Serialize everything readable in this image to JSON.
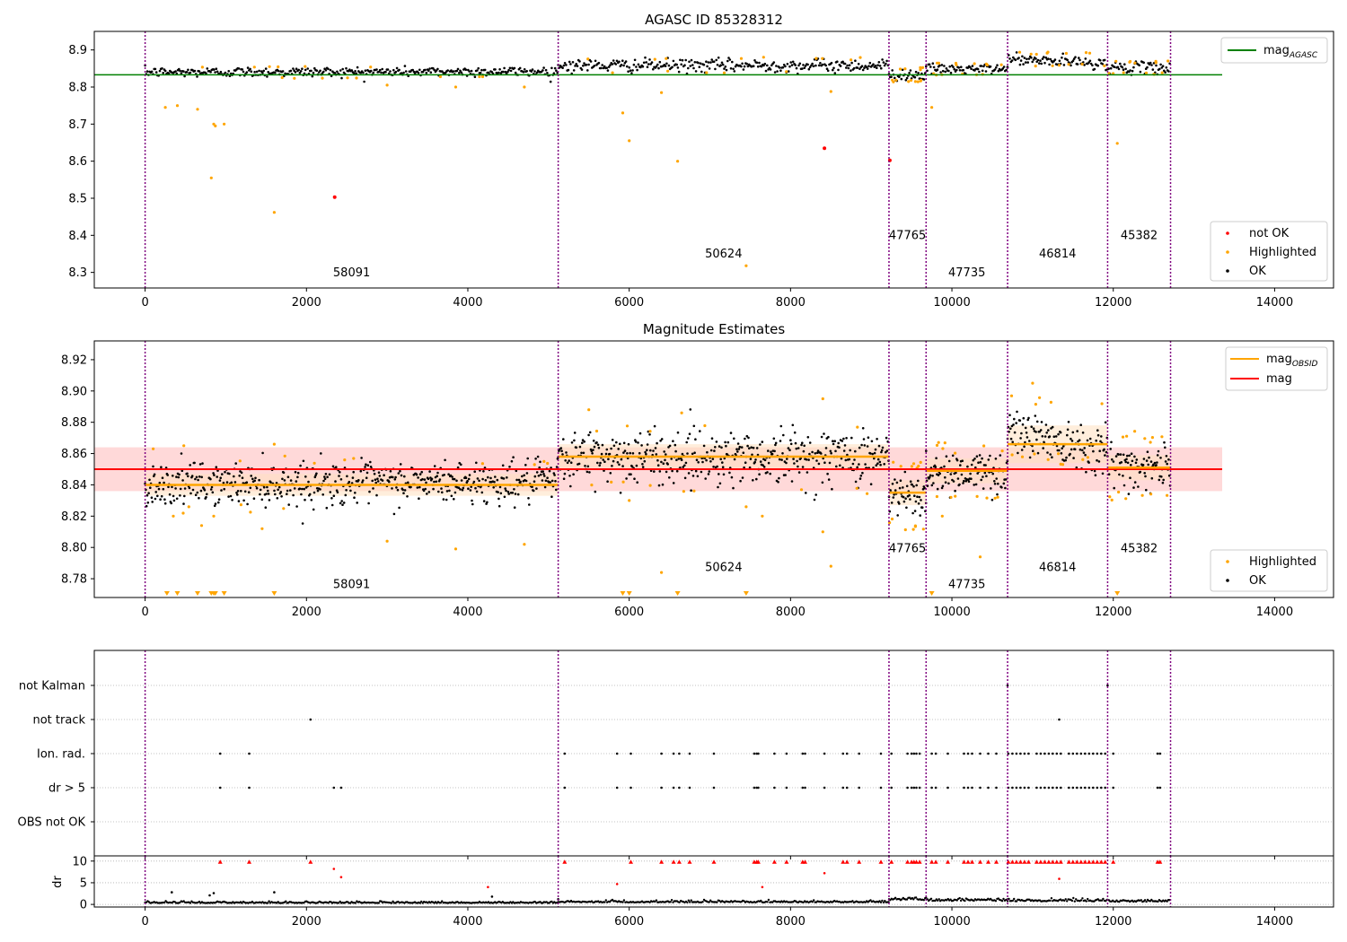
{
  "colors": {
    "ok": "#000000",
    "highlighted": "#ffa500",
    "not_ok": "#ff0000",
    "mag_agasc": "#008000",
    "mag": "#ff0000",
    "mag_obsid": "#ffa500",
    "obsid_line": "#800080",
    "band_red": "#ffc0c0",
    "band_orange": "#ffe0c0"
  },
  "chart_data": [
    {
      "type": "scatter",
      "title": "AGASC ID 85328312",
      "xlim": [
        -630,
        14730
      ],
      "ylim": [
        8.258,
        8.95
      ],
      "xticks": [
        0,
        2000,
        4000,
        6000,
        8000,
        10000,
        12000,
        14000
      ],
      "yticks": [
        8.3,
        8.4,
        8.5,
        8.6,
        8.7,
        8.8,
        8.9
      ],
      "obsid_boundaries": [
        0,
        5120,
        9220,
        9680,
        10690,
        11930,
        12710
      ],
      "obsid_labels": [
        {
          "label": "58091",
          "x": 2560,
          "y": 8.29
        },
        {
          "label": "50624",
          "x": 7170,
          "y": 8.34
        },
        {
          "label": "47765",
          "x": 9450,
          "y": 8.39
        },
        {
          "label": "47735",
          "x": 10185,
          "y": 8.29
        },
        {
          "label": "46814",
          "x": 11310,
          "y": 8.34
        },
        {
          "label": "45382",
          "x": 12320,
          "y": 8.39
        }
      ],
      "ok_segments": [
        {
          "x": [
            0,
            5120
          ],
          "center": 8.84,
          "half_width": 0.012,
          "slope": 0.002
        },
        {
          "x": [
            5120,
            9220
          ],
          "center": 8.858,
          "half_width": 0.016,
          "slope": 0.0
        },
        {
          "x": [
            9220,
            9680
          ],
          "center": 8.833,
          "half_width": 0.014,
          "slope": 0.0
        },
        {
          "x": [
            9680,
            10690
          ],
          "center": 8.848,
          "half_width": 0.012,
          "slope": 0.0
        },
        {
          "x": [
            10690,
            11930
          ],
          "center": 8.875,
          "half_width": 0.014,
          "slope": -0.012
        },
        {
          "x": [
            11930,
            12710
          ],
          "center": 8.852,
          "half_width": 0.014,
          "slope": 0.0
        }
      ],
      "highlighted_outliers": [
        [
          250,
          8.745
        ],
        [
          400,
          8.75
        ],
        [
          650,
          8.74
        ],
        [
          820,
          8.555
        ],
        [
          850,
          8.7
        ],
        [
          870,
          8.695
        ],
        [
          980,
          8.7
        ],
        [
          1600,
          8.462
        ],
        [
          3000,
          8.805
        ],
        [
          3850,
          8.8
        ],
        [
          4700,
          8.8
        ],
        [
          5920,
          8.73
        ],
        [
          6000,
          8.655
        ],
        [
          6400,
          8.785
        ],
        [
          6600,
          8.6
        ],
        [
          7450,
          8.318
        ],
        [
          8500,
          8.788
        ],
        [
          9750,
          8.745
        ],
        [
          12050,
          8.648
        ]
      ],
      "not_ok_points": [
        [
          2350,
          8.503
        ],
        [
          8420,
          8.635
        ],
        [
          9230,
          8.602
        ]
      ],
      "hlines": [
        {
          "name": "mag_AGASC",
          "y": 8.833,
          "x": [
            -630,
            13350
          ],
          "color": "#008000"
        }
      ],
      "legends": [
        {
          "position": "upper-right",
          "entries": [
            {
              "label": "mag",
              "sub": "AGASC"
            }
          ]
        },
        {
          "position": "lower-right",
          "entries": [
            {
              "label": "not OK"
            },
            {
              "label": "Highlighted"
            },
            {
              "label": "OK"
            }
          ]
        }
      ]
    },
    {
      "type": "scatter",
      "title": "Magnitude Estimates",
      "xlim": [
        -630,
        14730
      ],
      "ylim": [
        8.768,
        8.932
      ],
      "xticks": [
        0,
        2000,
        4000,
        6000,
        8000,
        10000,
        12000,
        14000
      ],
      "yticks": [
        8.78,
        8.8,
        8.82,
        8.84,
        8.86,
        8.88,
        8.9,
        8.92
      ],
      "obsid_boundaries": [
        0,
        5120,
        9220,
        9680,
        10690,
        11930,
        12710
      ],
      "obsid_labels": [
        {
          "label": "58091",
          "x": 2560,
          "y": 8.774
        },
        {
          "label": "50624",
          "x": 7170,
          "y": 8.785
        },
        {
          "label": "47765",
          "x": 9450,
          "y": 8.797
        },
        {
          "label": "47735",
          "x": 10185,
          "y": 8.774
        },
        {
          "label": "46814",
          "x": 11310,
          "y": 8.785
        },
        {
          "label": "45382",
          "x": 12320,
          "y": 8.797
        }
      ],
      "mag_band": {
        "center": 8.85,
        "half_width": 0.014,
        "x": [
          -630,
          13350
        ]
      },
      "obsid_mags": [
        {
          "x": [
            0,
            5120
          ],
          "y": 8.84,
          "band": 0.007
        },
        {
          "x": [
            5120,
            9220
          ],
          "y": 8.858,
          "band": 0.008
        },
        {
          "x": [
            9220,
            9680
          ],
          "y": 8.835,
          "band": 0.008
        },
        {
          "x": [
            9680,
            10690
          ],
          "y": 8.849,
          "band": 0.008
        },
        {
          "x": [
            10690,
            11930
          ],
          "y": 8.866,
          "band": 0.012
        },
        {
          "x": [
            11930,
            12710
          ],
          "y": 8.851,
          "band": 0.008
        }
      ],
      "ok_segments": [
        {
          "x": [
            0,
            5120
          ],
          "center": 8.84,
          "half_width": 0.012,
          "slope": 0.002
        },
        {
          "x": [
            5120,
            9220
          ],
          "center": 8.858,
          "half_width": 0.016,
          "slope": 0.0
        },
        {
          "x": [
            9220,
            9680
          ],
          "center": 8.833,
          "half_width": 0.014,
          "slope": 0.0
        },
        {
          "x": [
            9680,
            10690
          ],
          "center": 8.848,
          "half_width": 0.012,
          "slope": 0.0
        },
        {
          "x": [
            10690,
            11930
          ],
          "center": 8.875,
          "half_width": 0.014,
          "slope": -0.012
        },
        {
          "x": [
            11930,
            12710
          ],
          "center": 8.852,
          "half_width": 0.014,
          "slope": 0.0
        }
      ],
      "highlighted_outliers": [
        [
          100,
          8.863
        ],
        [
          480,
          8.865
        ],
        [
          350,
          8.82
        ],
        [
          700,
          8.814
        ],
        [
          850,
          8.82
        ],
        [
          1600,
          8.866
        ],
        [
          1450,
          8.812
        ],
        [
          3000,
          8.804
        ],
        [
          3850,
          8.799
        ],
        [
          4700,
          8.802
        ],
        [
          5500,
          8.888
        ],
        [
          6000,
          8.83
        ],
        [
          6400,
          8.784
        ],
        [
          6650,
          8.886
        ],
        [
          7450,
          8.826
        ],
        [
          7650,
          8.82
        ],
        [
          8400,
          8.81
        ],
        [
          8400,
          8.895
        ],
        [
          8500,
          8.788
        ],
        [
          9880,
          8.82
        ],
        [
          10350,
          8.794
        ],
        [
          11000,
          8.905
        ]
      ],
      "clipped_markers_x": [
        270,
        400,
        650,
        820,
        850,
        870,
        980,
        1600,
        5920,
        6000,
        6600,
        7450,
        9750,
        12050
      ],
      "legends": [
        {
          "position": "upper-right",
          "entries": [
            {
              "label": "mag",
              "sub": "OBSID"
            },
            {
              "label": "mag"
            }
          ]
        },
        {
          "position": "lower-right",
          "entries": [
            {
              "label": "Highlighted"
            },
            {
              "label": "OK"
            }
          ]
        }
      ]
    },
    {
      "type": "scatter",
      "title": "",
      "xlim": [
        -630,
        14730
      ],
      "xticks": [
        0,
        2000,
        4000,
        6000,
        8000,
        10000,
        12000,
        14000
      ],
      "obsid_boundaries": [
        0,
        5120,
        9220,
        9680,
        10690,
        11930,
        12710
      ],
      "flag_rows": [
        "not Kalman",
        "not track",
        "Ion. rad.",
        "dr > 5",
        "OBS not OK"
      ],
      "flag_points": {
        "not Kalman": [
          10690,
          11930
        ],
        "not track": [
          2050,
          11330
        ],
        "Ion. rad.": [
          930,
          1290,
          5200,
          5850,
          6020,
          6400,
          6550,
          6620,
          6750,
          7050,
          7550,
          7580,
          7600,
          7800,
          7950,
          8150,
          8180,
          8420,
          8650,
          8700,
          8850,
          9120,
          9250,
          9450,
          9500,
          9530,
          9560,
          9600,
          9750,
          9800,
          9950,
          10150,
          10200,
          10250,
          10350,
          10450,
          10550,
          10700,
          10750,
          10800,
          10850,
          10900,
          10950,
          11050,
          11100,
          11150,
          11200,
          11250,
          11300,
          11350,
          11450,
          11500,
          11550,
          11600,
          11650,
          11700,
          11750,
          11800,
          11850,
          11900,
          12000,
          12550,
          12580
        ],
        "dr > 5": [
          930,
          1290,
          2340,
          2430,
          5200,
          5850,
          6020,
          6400,
          6550,
          6620,
          6750,
          7050,
          7550,
          7580,
          7600,
          7800,
          7950,
          8150,
          8180,
          8420,
          8650,
          8700,
          8850,
          9120,
          9250,
          9450,
          9500,
          9530,
          9560,
          9600,
          9750,
          9800,
          9950,
          10150,
          10200,
          10250,
          10350,
          10450,
          10550,
          10700,
          10750,
          10800,
          10850,
          10900,
          10950,
          11050,
          11100,
          11150,
          11200,
          11250,
          11300,
          11350,
          11450,
          11500,
          11550,
          11600,
          11650,
          11700,
          11750,
          11800,
          11850,
          11900,
          12000,
          12550,
          12580
        ],
        "OBS not OK": []
      },
      "dr_panel": {
        "ylabel": "dr",
        "ylim": [
          -0.6,
          11.2
        ],
        "yticks": [
          0,
          5,
          10
        ],
        "baseline_segments": [
          {
            "x": [
              0,
              5120
            ],
            "center": 0.3,
            "spread": 0.3
          },
          {
            "x": [
              5120,
              9220
            ],
            "center": 0.45,
            "spread": 0.35
          },
          {
            "x": [
              9220,
              9680
            ],
            "center": 1.0,
            "spread": 0.6
          },
          {
            "x": [
              9680,
              10690
            ],
            "center": 0.8,
            "spread": 0.5
          },
          {
            "x": [
              10690,
              11930
            ],
            "center": 0.7,
            "spread": 0.5
          },
          {
            "x": [
              11930,
              12710
            ],
            "center": 0.6,
            "spread": 0.4
          }
        ],
        "scatter_points": [
          [
            330,
            2.8
          ],
          [
            800,
            2.1
          ],
          [
            850,
            2.6
          ],
          [
            1600,
            2.8
          ],
          [
            4300,
            1.8
          ],
          [
            5120,
            1.2
          ]
        ],
        "red_points": [
          [
            930,
            9.8
          ],
          [
            1290,
            9.8
          ],
          [
            2050,
            9.8
          ],
          [
            2340,
            8.2
          ],
          [
            2430,
            6.3
          ],
          [
            4250,
            4.0
          ],
          [
            5200,
            9.8
          ],
          [
            5850,
            4.7
          ],
          [
            6020,
            9.8
          ],
          [
            6400,
            9.8
          ],
          [
            6550,
            9.8
          ],
          [
            6620,
            9.8
          ],
          [
            6750,
            9.8
          ],
          [
            7050,
            9.8
          ],
          [
            7550,
            9.8
          ],
          [
            7580,
            9.8
          ],
          [
            7600,
            9.8
          ],
          [
            7650,
            4.0
          ],
          [
            7800,
            9.8
          ],
          [
            7950,
            9.8
          ],
          [
            8150,
            9.8
          ],
          [
            8180,
            9.8
          ],
          [
            8420,
            7.2
          ],
          [
            8650,
            9.8
          ],
          [
            8700,
            9.8
          ],
          [
            8850,
            9.8
          ],
          [
            9120,
            9.8
          ],
          [
            9250,
            9.8
          ],
          [
            9450,
            9.8
          ],
          [
            9500,
            9.8
          ],
          [
            9530,
            9.8
          ],
          [
            9560,
            9.8
          ],
          [
            9600,
            9.8
          ],
          [
            9750,
            9.8
          ],
          [
            9800,
            9.8
          ],
          [
            9950,
            9.8
          ],
          [
            10150,
            9.8
          ],
          [
            10200,
            9.8
          ],
          [
            10250,
            9.8
          ],
          [
            10350,
            9.8
          ],
          [
            10450,
            9.8
          ],
          [
            10550,
            9.8
          ],
          [
            10700,
            9.8
          ],
          [
            10750,
            9.8
          ],
          [
            10800,
            9.8
          ],
          [
            10850,
            9.8
          ],
          [
            10900,
            9.8
          ],
          [
            10950,
            9.8
          ],
          [
            11050,
            9.8
          ],
          [
            11100,
            9.8
          ],
          [
            11150,
            9.8
          ],
          [
            11200,
            9.8
          ],
          [
            11250,
            9.8
          ],
          [
            11300,
            9.8
          ],
          [
            11330,
            5.9
          ],
          [
            11350,
            9.8
          ],
          [
            11450,
            9.8
          ],
          [
            11500,
            9.8
          ],
          [
            11550,
            9.8
          ],
          [
            11600,
            9.8
          ],
          [
            11650,
            9.8
          ],
          [
            11700,
            9.8
          ],
          [
            11750,
            9.8
          ],
          [
            11800,
            9.8
          ],
          [
            11850,
            9.8
          ],
          [
            11900,
            9.8
          ],
          [
            12000,
            9.8
          ],
          [
            12550,
            9.8
          ],
          [
            12580,
            9.8
          ]
        ]
      }
    }
  ]
}
